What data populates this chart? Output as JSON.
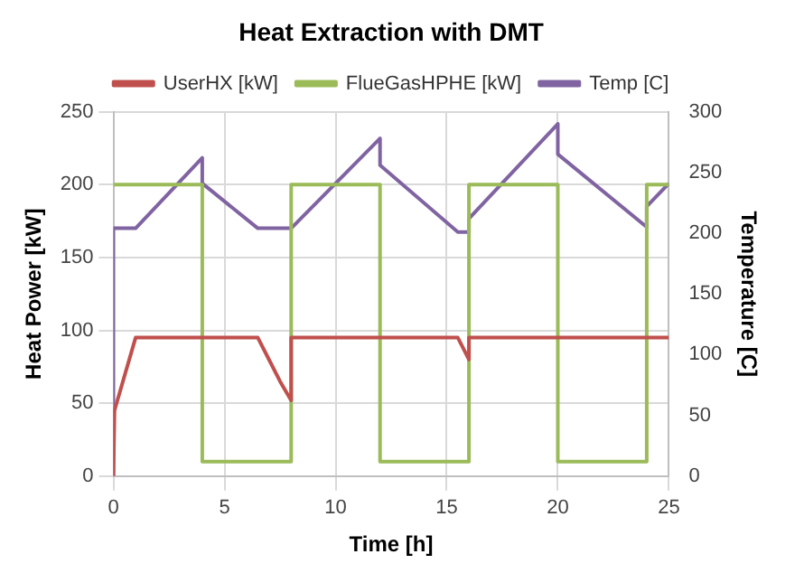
{
  "chart_data": {
    "type": "line",
    "title": "Heat Extraction with DMT",
    "xlabel": "Time [h]",
    "ylabel": "Heat Power [kW]",
    "y2label": "Temperature [C]",
    "xlim": [
      0,
      25
    ],
    "xticks": [
      0,
      5,
      10,
      15,
      20,
      25
    ],
    "ylim": [
      0,
      250
    ],
    "yticks": [
      0,
      50,
      100,
      150,
      200,
      250
    ],
    "y2lim": [
      0,
      300
    ],
    "y2ticks": [
      0,
      50,
      100,
      150,
      200,
      250,
      300
    ],
    "grid": true,
    "legend": "top",
    "marker": "none",
    "line_style": "solid",
    "series": [
      {
        "name": "UserHX [kW]",
        "color": "#c0504d",
        "x": [
          0,
          0.05,
          1,
          6.5,
          7,
          7.5,
          8,
          8,
          15.5,
          16,
          16,
          25
        ],
        "values": [
          0,
          45,
          95,
          95,
          80,
          65,
          52,
          95,
          95,
          80,
          95,
          95
        ]
      },
      {
        "name": "FlueGasHPHE [kW]",
        "color": "#9bbb59",
        "x": [
          0,
          4,
          4,
          8,
          8,
          12,
          12,
          16,
          16,
          20,
          20,
          24,
          24,
          25
        ],
        "values": [
          200,
          200,
          10,
          10,
          200,
          200,
          10,
          10,
          200,
          200,
          10,
          10,
          200,
          200
        ]
      },
      {
        "name": "Temp [C]",
        "color": "#8064a2",
        "axis": "y2",
        "x": [
          0,
          0,
          1,
          4,
          4,
          6.5,
          8,
          12,
          12,
          15.5,
          16,
          16,
          20,
          20,
          24,
          24,
          25
        ],
        "values": [
          0,
          204,
          204,
          262,
          241,
          204,
          204,
          278,
          256,
          201,
          201,
          212,
          290,
          265,
          205,
          222,
          241
        ]
      }
    ]
  }
}
